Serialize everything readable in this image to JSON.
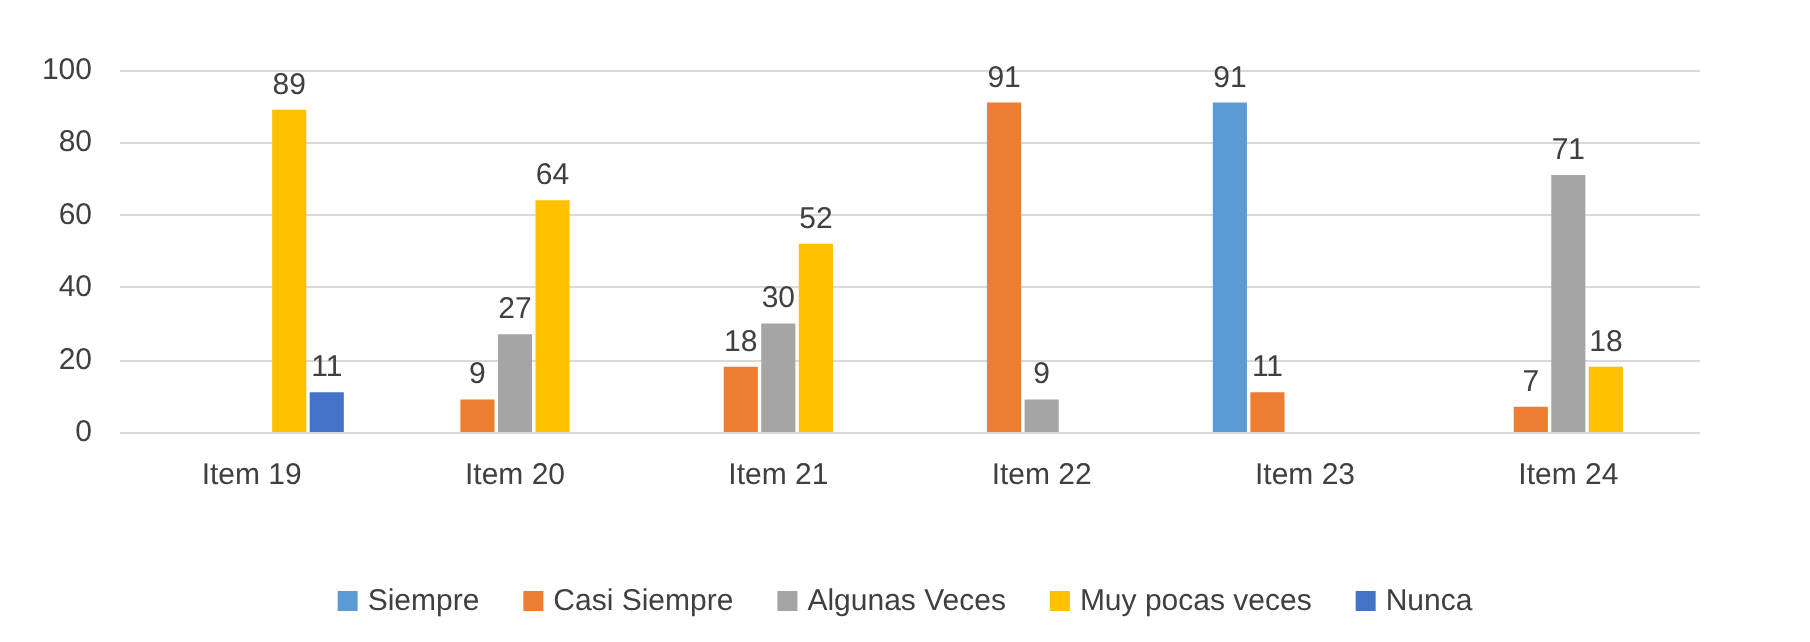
{
  "chart_data": {
    "type": "bar",
    "categories": [
      "Item 19",
      "Item 20",
      "Item 21",
      "Item 22",
      "Item 23",
      "Item 24"
    ],
    "series": [
      {
        "name": "Siempre",
        "color": "#5b9bd5",
        "values": [
          null,
          null,
          null,
          null,
          91,
          null
        ]
      },
      {
        "name": "Casi Siempre",
        "color": "#ed7d31",
        "values": [
          null,
          9,
          18,
          91,
          11,
          7
        ]
      },
      {
        "name": "Algunas Veces",
        "color": "#a5a5a5",
        "values": [
          null,
          27,
          30,
          9,
          null,
          71
        ]
      },
      {
        "name": "Muy pocas veces",
        "color": "#ffc000",
        "values": [
          89,
          64,
          52,
          null,
          null,
          18
        ]
      },
      {
        "name": "Nunca",
        "color": "#4472c4",
        "values": [
          11,
          null,
          null,
          null,
          null,
          null
        ]
      }
    ],
    "ylim": [
      0,
      100
    ],
    "yticks": [
      0,
      20,
      40,
      60,
      80,
      100
    ],
    "grid": "y",
    "legend": "bottom",
    "data_labels": true
  }
}
